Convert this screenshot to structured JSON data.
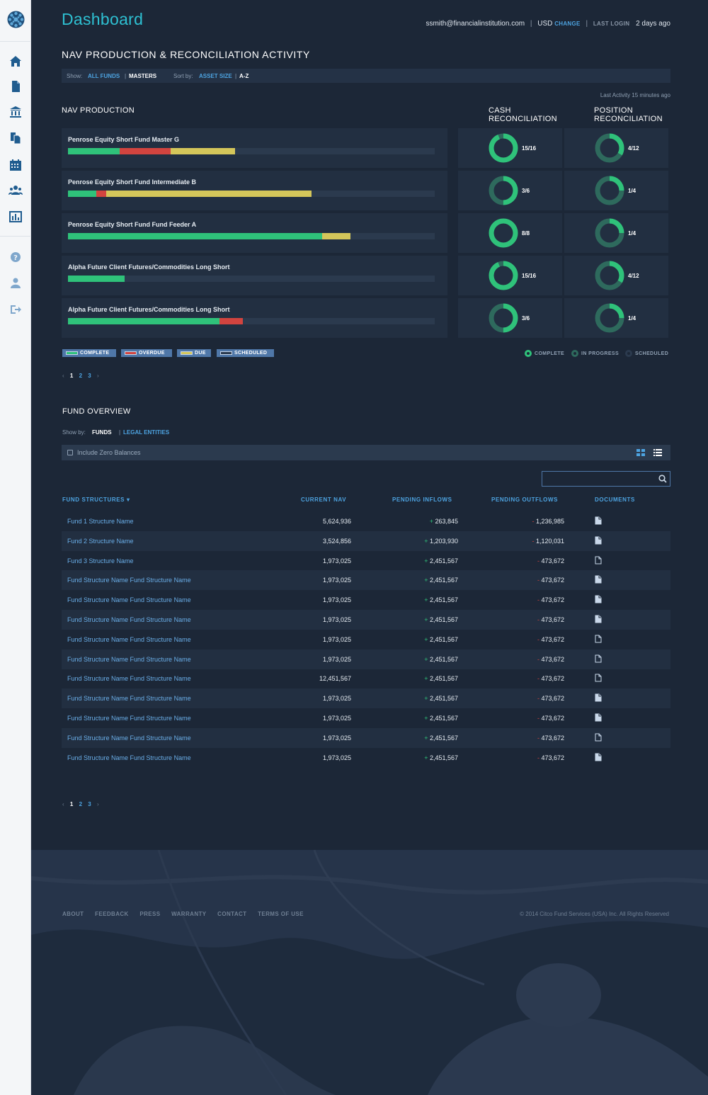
{
  "header": {
    "title": "Dashboard",
    "email": "ssmith@financialinstitution.com",
    "currency": "USD",
    "change_label": "CHANGE",
    "last_login_label": "LAST LOGIN",
    "last_login_value": "2 days ago"
  },
  "nav_section": {
    "title": "NAV PRODUCTION & RECONCILIATION ACTIVITY",
    "show_label": "Show:",
    "show_all": "ALL FUNDS",
    "show_masters": "MASTERS",
    "sort_label": "Sort by:",
    "sort_asset": "ASSET SIZE",
    "sort_az": "A-Z",
    "last_activity": "Last Activity 15 minutes ago",
    "nav_production_label": "NAV PRODUCTION",
    "cash_recon_label": "CASH RECONCILIATION",
    "position_recon_label": "POSITION RECONCILIATION",
    "rows": [
      {
        "name": "Penrose Equity Short Fund Master G",
        "complete": 0.14,
        "overdue": 0.14,
        "due": 0.175,
        "cash": "15/16",
        "cash_frac": 0.9375,
        "pos": "4/12",
        "pos_frac": 0.3333
      },
      {
        "name": "Penrose Equity Short Fund Intermediate B",
        "complete": 0.078,
        "overdue": 0.027,
        "due": 0.56,
        "cash": "3/6",
        "cash_frac": 0.5,
        "pos": "1/4",
        "pos_frac": 0.25
      },
      {
        "name": "Penrose Equity Short Fund Fund Feeder A",
        "complete": 0.694,
        "overdue": 0,
        "due": 0.077,
        "cash": "8/8",
        "cash_frac": 1.0,
        "pos": "1/4",
        "pos_frac": 0.25
      },
      {
        "name": "Alpha Future Client Futures/Commodities Long Short",
        "complete": 0.155,
        "overdue": 0,
        "due": 0,
        "cash": "15/16",
        "cash_frac": 0.9375,
        "pos": "4/12",
        "pos_frac": 0.3333
      },
      {
        "name": "Alpha Future Client Futures/Commodities Long Short",
        "complete": 0.414,
        "overdue": 0.062,
        "due": 0,
        "cash": "3/6",
        "cash_frac": 0.5,
        "pos": "1/4",
        "pos_frac": 0.25
      }
    ],
    "legend": {
      "complete": "COMPLETE",
      "overdue": "OVERDUE",
      "due": "DUE",
      "scheduled": "SCHEDULED"
    },
    "recon_legend": {
      "complete": "COMPLETE",
      "in_progress": "IN PROGRESS",
      "scheduled": "SCHEDULED"
    },
    "pager": {
      "pages": [
        "1",
        "2",
        "3"
      ]
    }
  },
  "fund_overview": {
    "title": "FUND OVERVIEW",
    "show_label": "Show by:",
    "funds": "FUNDS",
    "legal": "LEGAL ENTITIES",
    "zero_balances": "Include Zero Balances",
    "columns": [
      "FUND STRUCTURES",
      "CURRENT NAV",
      "PENDING INFLOWS",
      "PENDING OUTFLOWS",
      "DOCUMENTS"
    ],
    "rows": [
      {
        "name": "Fund 1 Structure Name",
        "nav": "5,624,936",
        "inflow": "263,845",
        "outflow": "1,236,985"
      },
      {
        "name": "Fund 2 Structure Name",
        "nav": "3,524,856",
        "inflow": "1,203,930",
        "outflow": "1,120,031"
      },
      {
        "name": "Fund 3 Structure Name",
        "nav": "1,973,025",
        "inflow": "2,451,567",
        "outflow": "473,672"
      },
      {
        "name": "Fund Structure Name Fund Structure Name",
        "nav": "1,973,025",
        "inflow": "2,451,567",
        "outflow": "473,672"
      },
      {
        "name": "Fund Structure Name Fund Structure Name",
        "nav": "1,973,025",
        "inflow": "2,451,567",
        "outflow": "473,672"
      },
      {
        "name": "Fund Structure Name Fund Structure Name",
        "nav": "1,973,025",
        "inflow": "2,451,567",
        "outflow": "473,672"
      },
      {
        "name": "Fund Structure Name Fund Structure Name",
        "nav": "1,973,025",
        "inflow": "2,451,567",
        "outflow": "473,672"
      },
      {
        "name": "Fund Structure Name Fund Structure Name",
        "nav": "1,973,025",
        "inflow": "2,451,567",
        "outflow": "473,672"
      },
      {
        "name": "Fund Structure Name Fund Structure Name",
        "nav": "12,451,567",
        "inflow": "2,451,567",
        "outflow": "473,672"
      },
      {
        "name": "Fund Structure Name Fund Structure Name",
        "nav": "1,973,025",
        "inflow": "2,451,567",
        "outflow": "473,672"
      },
      {
        "name": "Fund Structure Name Fund Structure Name",
        "nav": "1,973,025",
        "inflow": "2,451,567",
        "outflow": "473,672"
      },
      {
        "name": "Fund Structure Name Fund Structure Name",
        "nav": "1,973,025",
        "inflow": "2,451,567",
        "outflow": "473,672"
      },
      {
        "name": "Fund Structure Name Fund Structure Name",
        "nav": "1,973,025",
        "inflow": "2,451,567",
        "outflow": "473,672"
      }
    ],
    "doc_icons": [
      "file-filled-icon",
      "file-filled-icon",
      "file-outline-icon",
      "file-filled-icon",
      "file-filled-icon",
      "file-filled-icon",
      "file-outline-icon",
      "file-outline-icon",
      "file-outline-icon",
      "file-filled-icon",
      "file-filled-icon",
      "file-outline-icon",
      "file-filled-icon"
    ],
    "pager": {
      "pages": [
        "1",
        "2",
        "3"
      ]
    }
  },
  "footer": {
    "links": [
      "ABOUT",
      "FEEDBACK",
      "PRESS",
      "WARRANTY",
      "CONTACT",
      "TERMS OF USE"
    ],
    "copyright": "© 2014 Citco Fund Services (USA) Inc. All Rights Reserved"
  },
  "colors": {
    "complete": "#2fc27a",
    "overdue": "#d2443f",
    "due": "#d4c65a",
    "scheduled": "#2b3a4e",
    "accent": "#2ec0d2",
    "link": "#4da3e0"
  },
  "sidebar_icons": [
    "home-icon",
    "document-icon",
    "bank-icon",
    "copy-icon",
    "calendar-icon",
    "users-icon",
    "chart-icon",
    "help-icon",
    "user-icon",
    "logout-icon"
  ]
}
